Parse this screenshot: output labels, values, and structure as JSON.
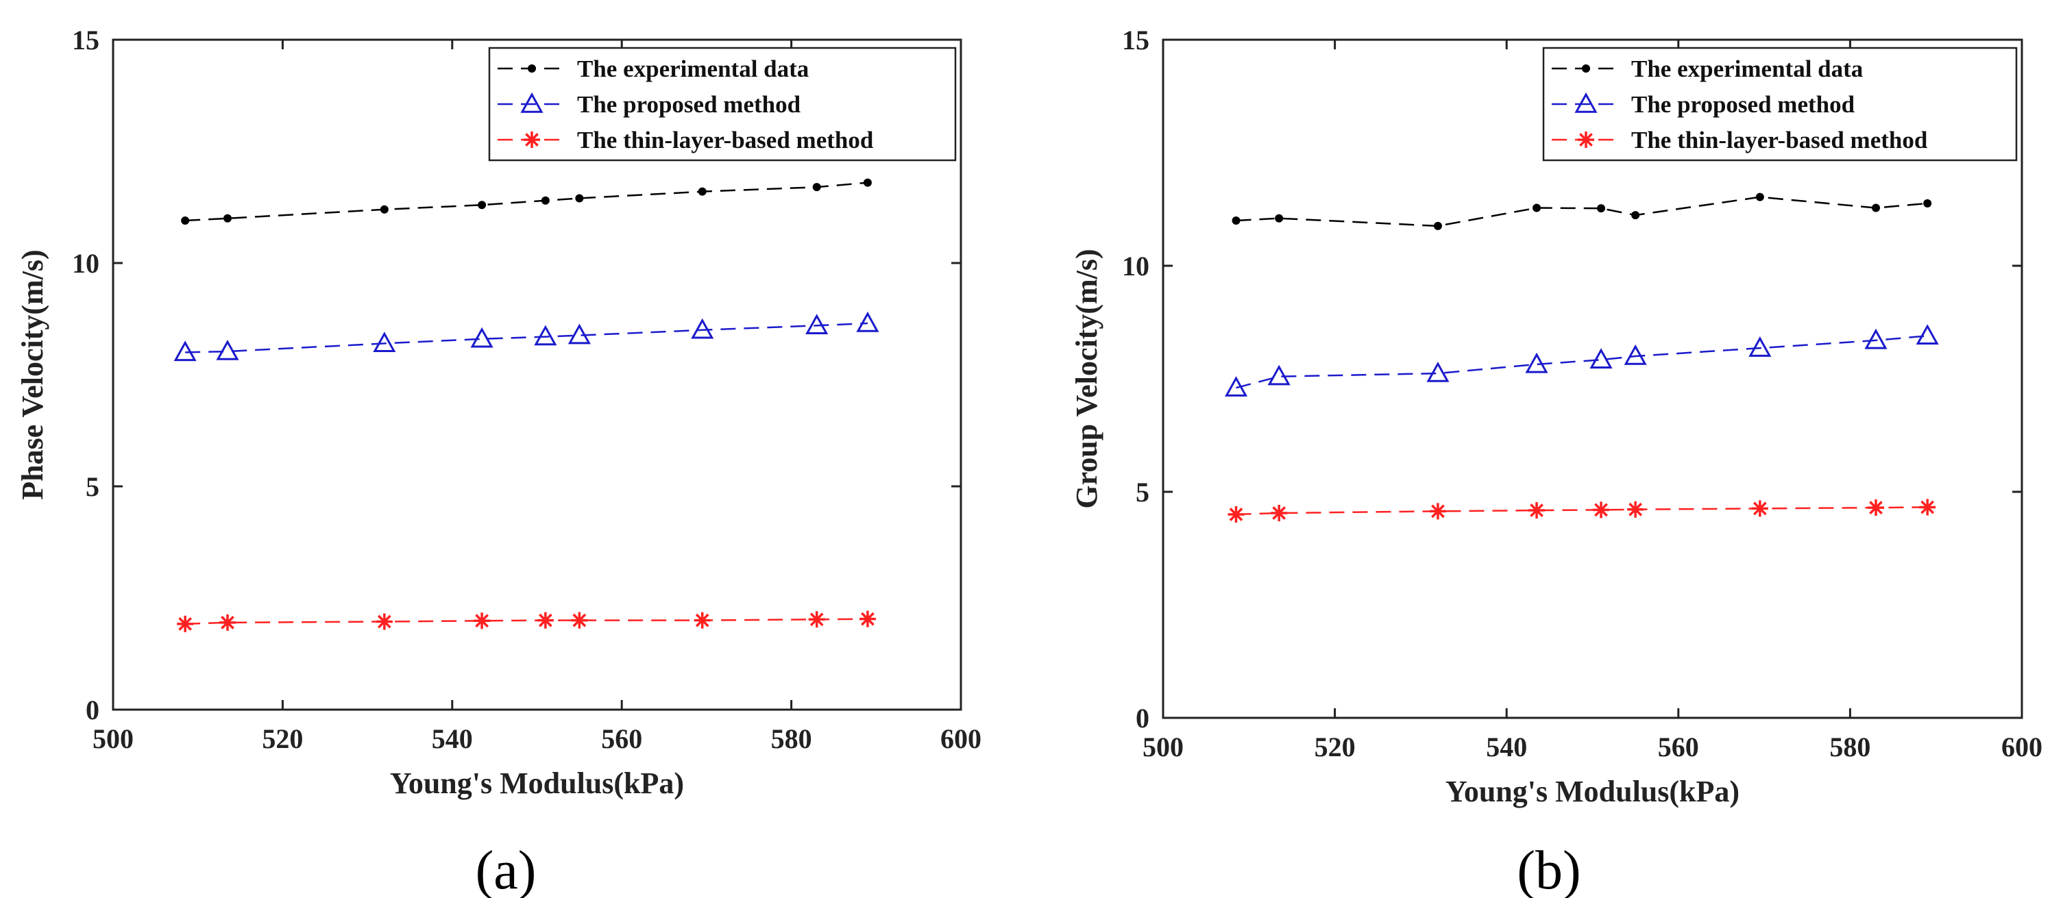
{
  "chart_data": [
    {
      "type": "line",
      "panel_label": "(a)",
      "xlabel": "Young's Modulus(kPa)",
      "ylabel": "Phase Velocity(m/s)",
      "xlim": [
        500,
        600
      ],
      "ylim": [
        0,
        15
      ],
      "xticks": [
        500,
        520,
        540,
        560,
        580,
        600
      ],
      "yticks": [
        0,
        5,
        10,
        15
      ],
      "x": [
        508.5,
        513.5,
        532,
        543.5,
        551,
        555,
        569.5,
        583,
        589
      ],
      "legend_position": "top-right",
      "series": [
        {
          "name": "The experimental data",
          "color": "#000000",
          "marker": "dot",
          "values": [
            10.95,
            11.0,
            11.2,
            11.3,
            11.4,
            11.45,
            11.6,
            11.7,
            11.8
          ]
        },
        {
          "name": "The proposed method",
          "color": "#1a1acc",
          "marker": "triangle",
          "values": [
            8.0,
            8.02,
            8.2,
            8.3,
            8.35,
            8.38,
            8.5,
            8.6,
            8.65
          ]
        },
        {
          "name": "The thin-layer-based method",
          "color": "#ff2020",
          "marker": "star",
          "values": [
            1.92,
            1.95,
            1.97,
            1.99,
            2.0,
            2.0,
            2.0,
            2.02,
            2.03
          ]
        }
      ]
    },
    {
      "type": "line",
      "panel_label": "(b)",
      "xlabel": "Young's Modulus(kPa)",
      "ylabel": "Group Velocity(m/s)",
      "xlim": [
        500,
        600
      ],
      "ylim": [
        0,
        15
      ],
      "xticks": [
        500,
        520,
        540,
        560,
        580,
        600
      ],
      "yticks": [
        0,
        5,
        10,
        15
      ],
      "x": [
        508.5,
        513.5,
        532,
        543.5,
        551,
        555,
        569.5,
        583,
        589
      ],
      "legend_position": "top-right",
      "series": [
        {
          "name": "The experimental data",
          "color": "#000000",
          "marker": "dot",
          "values": [
            11.0,
            11.05,
            10.88,
            11.28,
            11.27,
            11.12,
            11.52,
            11.28,
            11.38
          ]
        },
        {
          "name": "The proposed method",
          "color": "#1a1acc",
          "marker": "triangle",
          "values": [
            7.3,
            7.55,
            7.62,
            7.82,
            7.92,
            8.0,
            8.18,
            8.35,
            8.45
          ]
        },
        {
          "name": "The thin-layer-based method",
          "color": "#ff2020",
          "marker": "star",
          "values": [
            4.5,
            4.53,
            4.57,
            4.59,
            4.6,
            4.61,
            4.63,
            4.65,
            4.66
          ]
        }
      ]
    }
  ]
}
